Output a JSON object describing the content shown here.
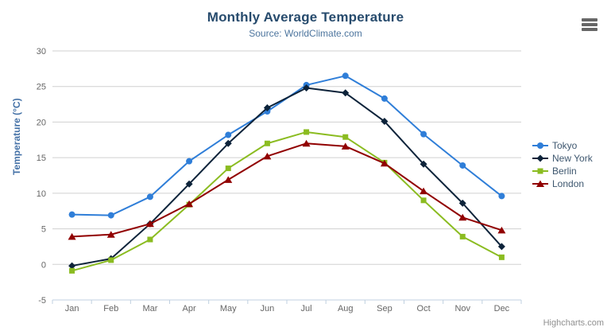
{
  "chart": {
    "title": "Monthly Average Temperature",
    "subtitle": "Source: WorldClimate.com",
    "credit": "Highcharts.com",
    "export_menu_icon": "hamburger-icon",
    "colors": {
      "title": "#274b6d",
      "subtitle": "#4d759e",
      "axis_title": "#4572a7",
      "axis_labels": "#666666",
      "gridline": "#d0d0d0",
      "axis_line": "#c0d0e0",
      "legend_text": "#3e576f",
      "credit_text": "#909090",
      "burger": "#666666"
    }
  },
  "chart_data": {
    "type": "line",
    "title": "Monthly Average Temperature",
    "subtitle": "Source: WorldClimate.com",
    "categories": [
      "Jan",
      "Feb",
      "Mar",
      "Apr",
      "May",
      "Jun",
      "Jul",
      "Aug",
      "Sep",
      "Oct",
      "Nov",
      "Dec"
    ],
    "series": [
      {
        "name": "Tokyo",
        "color": "#2f7ed8",
        "marker": "circle",
        "values": [
          7.0,
          6.9,
          9.5,
          14.5,
          18.2,
          21.5,
          25.2,
          26.5,
          23.3,
          18.3,
          13.9,
          9.6
        ]
      },
      {
        "name": "New York",
        "color": "#0d233a",
        "marker": "diamond",
        "values": [
          -0.2,
          0.8,
          5.7,
          11.3,
          17.0,
          22.0,
          24.8,
          24.1,
          20.1,
          14.1,
          8.6,
          2.5
        ]
      },
      {
        "name": "Berlin",
        "color": "#8bbc21",
        "marker": "square",
        "values": [
          -0.9,
          0.6,
          3.5,
          8.4,
          13.5,
          17.0,
          18.6,
          17.9,
          14.3,
          9.0,
          3.9,
          1.0
        ]
      },
      {
        "name": "London",
        "color": "#910000",
        "marker": "triangle",
        "values": [
          3.9,
          4.2,
          5.7,
          8.5,
          11.9,
          15.2,
          17.0,
          16.6,
          14.2,
          10.3,
          6.6,
          4.8
        ]
      }
    ],
    "xlabel": "",
    "ylabel": "Temperature (°C)",
    "ylim": [
      -5,
      30
    ],
    "ytick_step": 5,
    "grid": true,
    "legend_position": "right"
  }
}
